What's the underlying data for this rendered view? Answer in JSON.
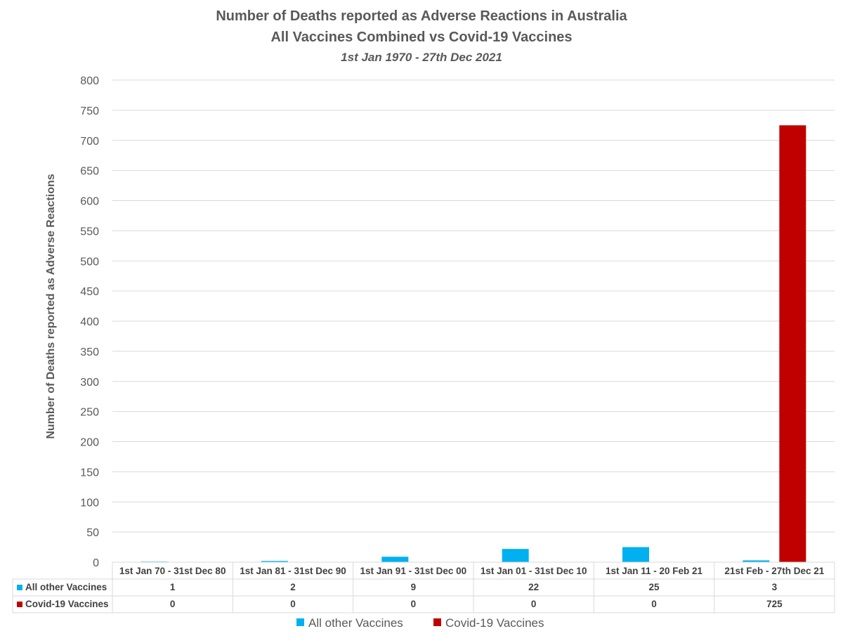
{
  "chart_data": {
    "type": "bar",
    "title": "Number of Deaths reported as Adverse Reactions in Australia",
    "subtitle": "All Vaccines Combined vs Covid-19 Vaccines",
    "date_range": "1st Jan 1970 - 27th Dec 2021",
    "ylabel": "Number of Deaths reported as Adverse Reactions",
    "xlabel": "",
    "ylim": [
      0,
      800
    ],
    "yticks": [
      "0",
      "50",
      "100",
      "150",
      "200",
      "250",
      "300",
      "350",
      "400",
      "450",
      "500",
      "550",
      "600",
      "650",
      "700",
      "750",
      "800"
    ],
    "categories": [
      "1st Jan 70 - 31st Dec 80",
      "1st Jan 81 - 31st Dec 90",
      "1st Jan 91 - 31st Dec 00",
      "1st Jan 01 - 31st Dec 10",
      "1st Jan 11 - 20 Feb 21",
      "21st Feb - 27th Dec 21"
    ],
    "series": [
      {
        "name": "All other Vaccines",
        "values": [
          1,
          2,
          9,
          22,
          25,
          3
        ],
        "labels": [
          "1",
          "2",
          "9",
          "22",
          "25",
          "3"
        ],
        "color": "#00B0F0"
      },
      {
        "name": "Covid-19 Vaccines",
        "values": [
          0,
          0,
          0,
          0,
          0,
          725
        ],
        "labels": [
          "0",
          "0",
          "0",
          "0",
          "0",
          "725"
        ],
        "color": "#C00000"
      }
    ],
    "grid": true,
    "legend": "bottom",
    "data_table": true
  }
}
